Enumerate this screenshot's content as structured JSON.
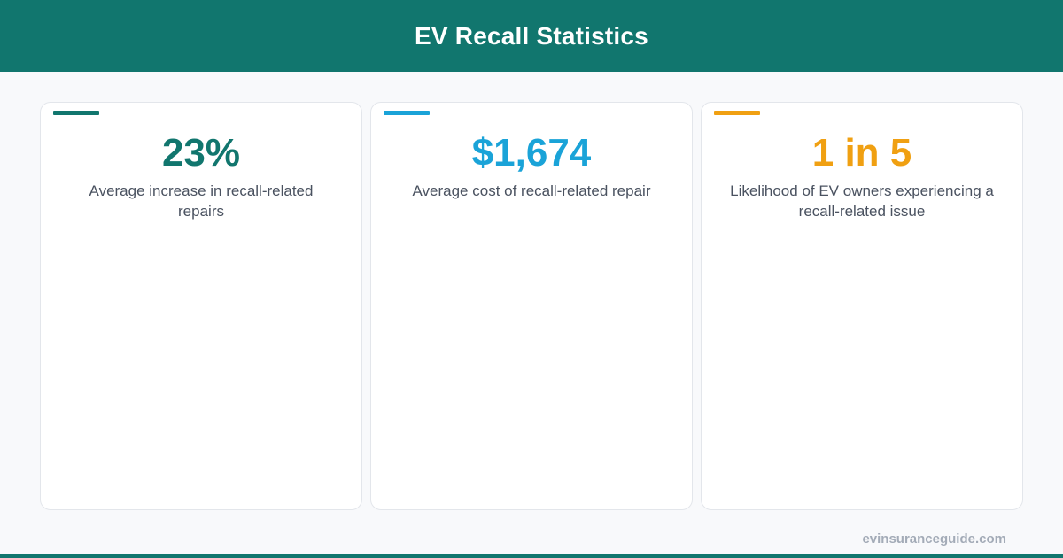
{
  "header": {
    "title": "EV Recall Statistics"
  },
  "cards": [
    {
      "value": "23%",
      "description": "Average increase in recall-related repairs",
      "color": "#11766e"
    },
    {
      "value": "$1,674",
      "description": "Average cost of recall-related repair",
      "color": "#1aa3d8"
    },
    {
      "value": "1 in 5",
      "description": "Likelihood of EV owners experiencing a recall-related issue",
      "color": "#f0a012"
    }
  ],
  "footer": {
    "url": "evinsuranceguide.com"
  },
  "colors": {
    "brand": "#11766e",
    "background": "#f8f9fb",
    "text": "#4a5260",
    "footer_text": "#a3abb7"
  }
}
